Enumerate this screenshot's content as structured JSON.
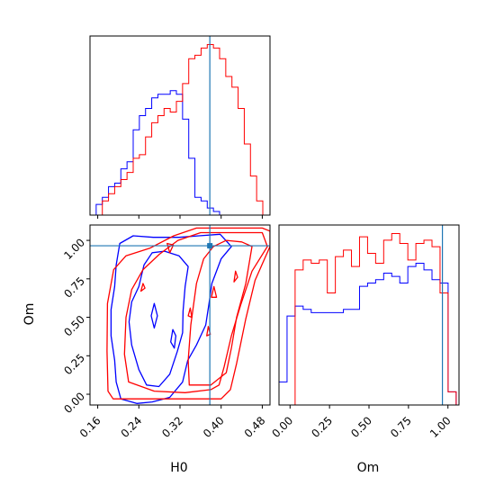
{
  "chart_data": [
    {
      "panel": "H0 marginal",
      "type": "step-histogram",
      "x_range": [
        0.145,
        0.495
      ],
      "bin_edges": [
        0.145,
        0.157,
        0.169,
        0.181,
        0.193,
        0.205,
        0.217,
        0.229,
        0.241,
        0.253,
        0.265,
        0.277,
        0.289,
        0.301,
        0.313,
        0.325,
        0.337,
        0.349,
        0.361,
        0.373,
        0.385,
        0.397,
        0.409,
        0.421,
        0.433,
        0.445,
        0.457,
        0.469,
        0.481,
        0.493
      ],
      "series": [
        {
          "color": "#0000ff",
          "counts": [
            0,
            3,
            5,
            8,
            9,
            13,
            15,
            24,
            28,
            30,
            33,
            34,
            34,
            35,
            34,
            27,
            16,
            5,
            4,
            2,
            1,
            0,
            0,
            0,
            0,
            0,
            0,
            0,
            0
          ]
        },
        {
          "color": "#ff0000",
          "counts": [
            0,
            0,
            4,
            6,
            8,
            10,
            12,
            16,
            17,
            22,
            26,
            28,
            30,
            29,
            32,
            37,
            44,
            45,
            47,
            48,
            47,
            44,
            39,
            36,
            30,
            20,
            11,
            4,
            0
          ]
        }
      ],
      "reference_line_x": 0.378
    },
    {
      "panel": "Om marginal",
      "type": "step-histogram",
      "x_range": [
        -0.07,
        1.07
      ],
      "bin_edges": [
        -0.07,
        -0.019,
        0.032,
        0.083,
        0.134,
        0.185,
        0.236,
        0.287,
        0.338,
        0.389,
        0.44,
        0.491,
        0.542,
        0.593,
        0.644,
        0.695,
        0.746,
        0.797,
        0.848,
        0.899,
        0.95,
        1.001,
        1.052
      ],
      "series": [
        {
          "color": "#0000ff",
          "counts": [
            7,
            27,
            30,
            29,
            28,
            28,
            28,
            28,
            29,
            29,
            36,
            37,
            38,
            40,
            39,
            37,
            42,
            43,
            41,
            38,
            37,
            4
          ]
        },
        {
          "color": "#ff0000",
          "counts": [
            0,
            0,
            41,
            44,
            43,
            44,
            34,
            45,
            47,
            42,
            51,
            46,
            43,
            50,
            52,
            49,
            44,
            49,
            50,
            48,
            34,
            4
          ]
        }
      ],
      "reference_line_x": 0.965
    },
    {
      "panel": "H0 vs Om joint",
      "type": "contour",
      "xlabel": "H0",
      "ylabel": "Om",
      "xlim": [
        0.145,
        0.495
      ],
      "ylim": [
        -0.07,
        1.1
      ],
      "x_ticks": [
        "0.16",
        "0.24",
        "0.32",
        "0.40",
        "0.48"
      ],
      "y_ticks": [
        "0.00",
        "0.25",
        "0.50",
        "0.75",
        "1.00"
      ],
      "reference_point": {
        "H0": 0.378,
        "Om": 0.965
      },
      "series": [
        {
          "color": "#0000ff",
          "contours": [
            [
              [
                0.205,
                -0.03
              ],
              [
                0.196,
                0.08
              ],
              [
                0.193,
                0.22
              ],
              [
                0.186,
                0.38
              ],
              [
                0.186,
                0.55
              ],
              [
                0.193,
                0.7
              ],
              [
                0.196,
                0.84
              ],
              [
                0.203,
                0.98
              ],
              [
                0.229,
                1.03
              ],
              [
                0.268,
                1.02
              ],
              [
                0.318,
                1.02
              ],
              [
                0.357,
                1.03
              ],
              [
                0.398,
                1.04
              ],
              [
                0.42,
                0.96
              ],
              [
                0.4,
                0.88
              ],
              [
                0.382,
                0.72
              ],
              [
                0.376,
                0.58
              ],
              [
                0.37,
                0.45
              ],
              [
                0.352,
                0.32
              ],
              [
                0.335,
                0.22
              ],
              [
                0.325,
                0.08
              ],
              [
                0.3,
                -0.02
              ],
              [
                0.266,
                -0.05
              ],
              [
                0.236,
                -0.06
              ],
              [
                0.205,
                -0.03
              ]
            ],
            [
              [
                0.255,
                0.06
              ],
              [
                0.24,
                0.16
              ],
              [
                0.226,
                0.32
              ],
              [
                0.221,
                0.47
              ],
              [
                0.226,
                0.6
              ],
              [
                0.24,
                0.7
              ],
              [
                0.25,
                0.84
              ],
              [
                0.266,
                0.92
              ],
              [
                0.29,
                0.93
              ],
              [
                0.318,
                0.9
              ],
              [
                0.336,
                0.83
              ],
              [
                0.33,
                0.7
              ],
              [
                0.326,
                0.54
              ],
              [
                0.325,
                0.4
              ],
              [
                0.315,
                0.28
              ],
              [
                0.3,
                0.13
              ],
              [
                0.279,
                0.05
              ],
              [
                0.255,
                0.06
              ]
            ],
            [
              [
                0.27,
                0.59
              ],
              [
                0.264,
                0.51
              ],
              [
                0.27,
                0.43
              ],
              [
                0.276,
                0.51
              ],
              [
                0.27,
                0.59
              ]
            ],
            [
              [
                0.306,
                0.42
              ],
              [
                0.302,
                0.34
              ],
              [
                0.309,
                0.3
              ],
              [
                0.312,
                0.38
              ],
              [
                0.306,
                0.42
              ]
            ]
          ]
        },
        {
          "color": "#ff0000",
          "contours": [
            [
              [
                0.18,
                0.02
              ],
              [
                0.178,
                0.28
              ],
              [
                0.179,
                0.59
              ],
              [
                0.191,
                0.81
              ],
              [
                0.215,
                0.9
              ],
              [
                0.262,
                0.95
              ],
              [
                0.308,
                1.03
              ],
              [
                0.352,
                1.08
              ],
              [
                0.42,
                1.08
              ],
              [
                0.48,
                1.08
              ],
              [
                0.495,
                1.06
              ],
              [
                0.495,
                0.96
              ],
              [
                0.466,
                0.74
              ],
              [
                0.448,
                0.49
              ],
              [
                0.43,
                0.2
              ],
              [
                0.418,
                0.03
              ],
              [
                0.4,
                -0.03
              ],
              [
                0.19,
                -0.03
              ],
              [
                0.18,
                0.02
              ]
            ],
            [
              [
                0.22,
                0.08
              ],
              [
                0.212,
                0.26
              ],
              [
                0.215,
                0.5
              ],
              [
                0.226,
                0.68
              ],
              [
                0.248,
                0.81
              ],
              [
                0.28,
                0.91
              ],
              [
                0.316,
                1.0
              ],
              [
                0.36,
                1.05
              ],
              [
                0.42,
                1.05
              ],
              [
                0.48,
                1.05
              ],
              [
                0.49,
                0.96
              ],
              [
                0.46,
                0.8
              ],
              [
                0.438,
                0.58
              ],
              [
                0.42,
                0.38
              ],
              [
                0.406,
                0.18
              ],
              [
                0.396,
                0.06
              ],
              [
                0.38,
                0.03
              ],
              [
                0.33,
                0.01
              ],
              [
                0.27,
                0.02
              ],
              [
                0.22,
                0.08
              ]
            ],
            [
              [
                0.338,
                0.06
              ],
              [
                0.336,
                0.22
              ],
              [
                0.341,
                0.45
              ],
              [
                0.352,
                0.72
              ],
              [
                0.366,
                0.88
              ],
              [
                0.385,
                0.96
              ],
              [
                0.41,
                1.0
              ],
              [
                0.44,
                0.99
              ],
              [
                0.46,
                0.96
              ],
              [
                0.448,
                0.72
              ],
              [
                0.43,
                0.5
              ],
              [
                0.42,
                0.3
              ],
              [
                0.41,
                0.14
              ],
              [
                0.38,
                0.06
              ],
              [
                0.338,
                0.06
              ]
            ],
            [
              [
                0.295,
                0.98
              ],
              [
                0.3,
                0.92
              ],
              [
                0.307,
                0.97
              ],
              [
                0.295,
                0.98
              ]
            ],
            [
              [
                0.34,
                0.56
              ],
              [
                0.336,
                0.51
              ],
              [
                0.343,
                0.5
              ],
              [
                0.34,
                0.56
              ]
            ],
            [
              [
                0.386,
                0.7
              ],
              [
                0.381,
                0.63
              ],
              [
                0.391,
                0.63
              ],
              [
                0.386,
                0.7
              ]
            ],
            [
              [
                0.428,
                0.8
              ],
              [
                0.425,
                0.73
              ],
              [
                0.432,
                0.76
              ],
              [
                0.428,
                0.8
              ]
            ],
            [
              [
                0.375,
                0.44
              ],
              [
                0.372,
                0.38
              ],
              [
                0.379,
                0.39
              ],
              [
                0.375,
                0.44
              ]
            ],
            [
              [
                0.248,
                0.72
              ],
              [
                0.244,
                0.67
              ],
              [
                0.252,
                0.69
              ],
              [
                0.248,
                0.72
              ]
            ]
          ]
        }
      ]
    }
  ],
  "colors": {
    "series_a": "#0000ff",
    "series_b": "#ff0000",
    "reference": "#1f77b4",
    "axes": "#000000"
  },
  "axes": {
    "h0": {
      "label": "H0",
      "ticks": [
        {
          "value": 0.16,
          "label": "0.16"
        },
        {
          "value": 0.24,
          "label": "0.24"
        },
        {
          "value": 0.32,
          "label": "0.32"
        },
        {
          "value": 0.4,
          "label": "0.40"
        },
        {
          "value": 0.48,
          "label": "0.48"
        }
      ]
    },
    "om": {
      "label": "Om",
      "ticks": [
        {
          "value": 0.0,
          "label": "0.00"
        },
        {
          "value": 0.25,
          "label": "0.25"
        },
        {
          "value": 0.5,
          "label": "0.50"
        },
        {
          "value": 0.75,
          "label": "0.75"
        },
        {
          "value": 1.0,
          "label": "1.00"
        }
      ]
    }
  }
}
